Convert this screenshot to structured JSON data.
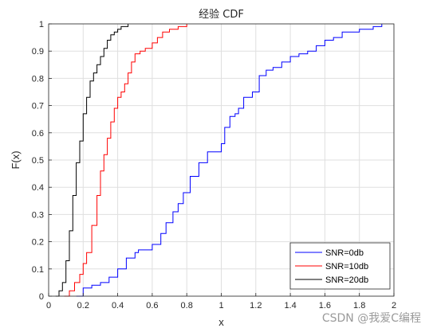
{
  "chart_data": {
    "type": "line",
    "title": "经验 CDF",
    "xlabel": "x",
    "ylabel": "F(x)",
    "xlim": [
      0,
      2
    ],
    "ylim": [
      0,
      1
    ],
    "xticks": [
      "0",
      "0.2",
      "0.4",
      "0.6",
      "0.8",
      "1",
      "1.2",
      "1.4",
      "1.6",
      "1.8",
      "2"
    ],
    "yticks": [
      "0",
      "0.1",
      "0.2",
      "0.3",
      "0.4",
      "0.5",
      "0.6",
      "0.7",
      "0.8",
      "0.9",
      "1"
    ],
    "grid": true,
    "legend_position": "bottom-right",
    "series": [
      {
        "name": "SNR=0db",
        "color": "#0000ff",
        "x": [
          0.16,
          0.2,
          0.25,
          0.3,
          0.35,
          0.4,
          0.45,
          0.5,
          0.52,
          0.6,
          0.65,
          0.68,
          0.72,
          0.75,
          0.78,
          0.82,
          0.87,
          0.92,
          0.96,
          1.0,
          1.02,
          1.05,
          1.08,
          1.1,
          1.13,
          1.18,
          1.22,
          1.26,
          1.3,
          1.35,
          1.4,
          1.45,
          1.5,
          1.55,
          1.6,
          1.65,
          1.7,
          1.8,
          1.88,
          1.93
        ],
        "y": [
          0.0,
          0.03,
          0.04,
          0.05,
          0.07,
          0.1,
          0.14,
          0.16,
          0.17,
          0.19,
          0.23,
          0.27,
          0.31,
          0.34,
          0.38,
          0.44,
          0.49,
          0.53,
          0.53,
          0.56,
          0.62,
          0.66,
          0.67,
          0.69,
          0.73,
          0.75,
          0.81,
          0.83,
          0.84,
          0.86,
          0.88,
          0.89,
          0.9,
          0.92,
          0.94,
          0.95,
          0.97,
          0.98,
          0.99,
          1.0
        ]
      },
      {
        "name": "SNR=10db",
        "color": "#ff0000",
        "x": [
          0.09,
          0.12,
          0.15,
          0.18,
          0.2,
          0.22,
          0.25,
          0.28,
          0.3,
          0.32,
          0.34,
          0.36,
          0.38,
          0.4,
          0.42,
          0.44,
          0.46,
          0.48,
          0.5,
          0.53,
          0.56,
          0.6,
          0.63,
          0.66,
          0.7,
          0.75,
          0.8
        ],
        "y": [
          0.0,
          0.02,
          0.05,
          0.08,
          0.12,
          0.16,
          0.26,
          0.37,
          0.46,
          0.52,
          0.58,
          0.64,
          0.69,
          0.73,
          0.75,
          0.78,
          0.82,
          0.86,
          0.89,
          0.9,
          0.91,
          0.93,
          0.95,
          0.97,
          0.98,
          0.99,
          1.0
        ]
      },
      {
        "name": "SNR=20db",
        "color": "#000000",
        "x": [
          0.04,
          0.06,
          0.08,
          0.1,
          0.12,
          0.14,
          0.16,
          0.18,
          0.2,
          0.22,
          0.24,
          0.26,
          0.28,
          0.3,
          0.32,
          0.34,
          0.36,
          0.38,
          0.4,
          0.42,
          0.44,
          0.46
        ],
        "y": [
          0.0,
          0.02,
          0.05,
          0.13,
          0.24,
          0.37,
          0.49,
          0.57,
          0.67,
          0.73,
          0.79,
          0.82,
          0.85,
          0.88,
          0.91,
          0.94,
          0.96,
          0.97,
          0.98,
          0.99,
          0.99,
          1.0
        ]
      }
    ]
  },
  "watermark": "CSDN @我爱C编程"
}
